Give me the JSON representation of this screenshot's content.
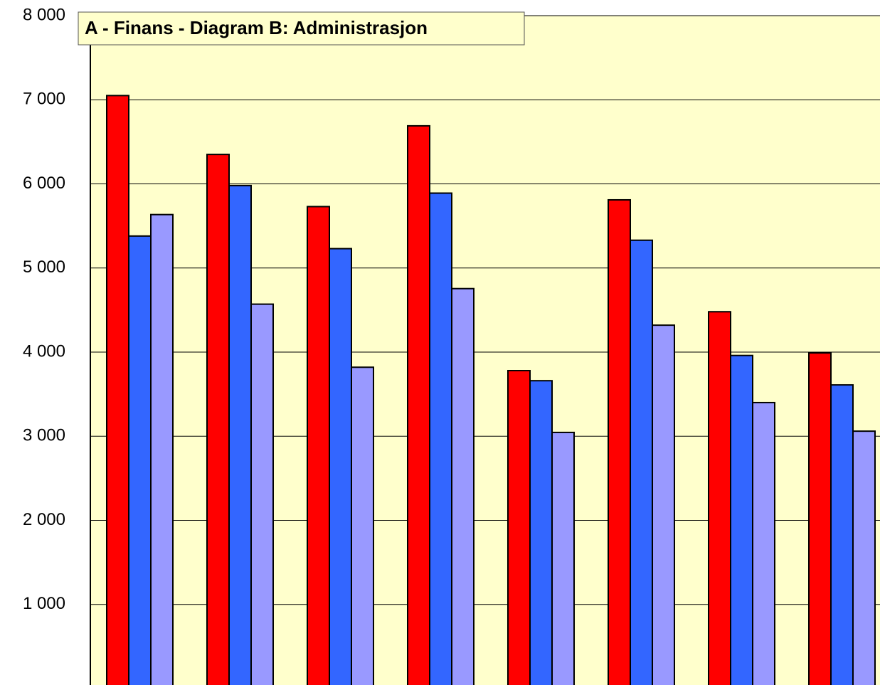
{
  "chart_data": {
    "type": "bar",
    "title": "A - Finans - Diagram B:   Administrasjon",
    "categories": [
      null,
      null,
      null,
      null,
      null,
      null,
      null,
      null
    ],
    "series": [
      {
        "color": "#ff0000",
        "values": [
          7050,
          6350,
          5730,
          6690,
          3780,
          5810,
          4480,
          3990
        ]
      },
      {
        "color": "#3366ff",
        "values": [
          5380,
          5980,
          5230,
          5890,
          3660,
          5330,
          3960,
          3610
        ]
      },
      {
        "color": "#9999ff",
        "values": [
          5635,
          4570,
          3820,
          4755,
          3045,
          4320,
          3400,
          3060
        ]
      }
    ],
    "ylim": [
      0,
      8000
    ],
    "yticks": [
      {
        "value": 1000,
        "label": "1 000"
      },
      {
        "value": 2000,
        "label": "2 000"
      },
      {
        "value": 3000,
        "label": "3 000"
      },
      {
        "value": 4000,
        "label": "4 000"
      },
      {
        "value": 5000,
        "label": "5 000"
      },
      {
        "value": 6000,
        "label": "6 000"
      },
      {
        "value": 7000,
        "label": "7 000"
      },
      {
        "value": 8000,
        "label": "8 000"
      }
    ],
    "grid": true,
    "background": "#ffffcc"
  }
}
